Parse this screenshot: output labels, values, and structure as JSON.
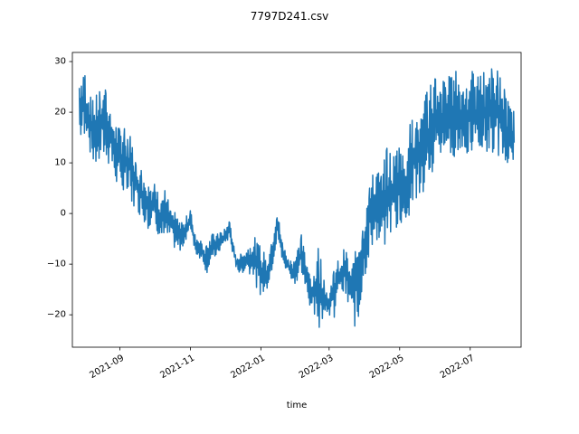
{
  "chart_data": {
    "type": "line",
    "title": "7797D241.csv",
    "xlabel": "time",
    "ylabel": "",
    "x_ticks": [
      "2021-09",
      "2021-11",
      "2022-01",
      "2022-03",
      "2022-05",
      "2022-07"
    ],
    "y_ticks": [
      -20,
      -10,
      0,
      10,
      20,
      30
    ],
    "xlim": [
      "2021-07-22",
      "2022-08-14"
    ],
    "ylim": [
      -26.4,
      31.8
    ],
    "grid": false,
    "legend": "none",
    "series": [
      {
        "color": "#1f77b4",
        "envelope": [
          {
            "date": "2021-07-28",
            "min": 14,
            "max": 28
          },
          {
            "date": "2021-08-01",
            "min": 14,
            "max": 30
          },
          {
            "date": "2021-08-05",
            "min": 13,
            "max": 24
          },
          {
            "date": "2021-08-10",
            "min": 9,
            "max": 22
          },
          {
            "date": "2021-08-15",
            "min": 10,
            "max": 26
          },
          {
            "date": "2021-08-20",
            "min": 11,
            "max": 26
          },
          {
            "date": "2021-08-25",
            "min": 8,
            "max": 20
          },
          {
            "date": "2021-09-01",
            "min": 4,
            "max": 17
          },
          {
            "date": "2021-09-05",
            "min": 3,
            "max": 19
          },
          {
            "date": "2021-09-10",
            "min": 2,
            "max": 16
          },
          {
            "date": "2021-09-15",
            "min": 1,
            "max": 11
          },
          {
            "date": "2021-09-20",
            "min": -1,
            "max": 9
          },
          {
            "date": "2021-09-25",
            "min": -3,
            "max": 7
          },
          {
            "date": "2021-10-01",
            "min": -2,
            "max": 6
          },
          {
            "date": "2021-10-05",
            "min": -5,
            "max": 4
          },
          {
            "date": "2021-10-10",
            "min": -6,
            "max": 5
          },
          {
            "date": "2021-10-15",
            "min": -5,
            "max": 1
          },
          {
            "date": "2021-10-20",
            "min": -8,
            "max": 0
          },
          {
            "date": "2021-10-25",
            "min": -7,
            "max": -2
          },
          {
            "date": "2021-11-01",
            "min": -3,
            "max": 1
          },
          {
            "date": "2021-11-05",
            "min": -8,
            "max": -4
          },
          {
            "date": "2021-11-10",
            "min": -9,
            "max": -5
          },
          {
            "date": "2021-11-15",
            "min": -12,
            "max": -6
          },
          {
            "date": "2021-11-20",
            "min": -9,
            "max": -4
          },
          {
            "date": "2021-11-25",
            "min": -8,
            "max": -4
          },
          {
            "date": "2021-12-01",
            "min": -6,
            "max": -3
          },
          {
            "date": "2021-12-05",
            "min": -5,
            "max": -1
          },
          {
            "date": "2021-12-10",
            "min": -11,
            "max": -8
          },
          {
            "date": "2021-12-15",
            "min": -12,
            "max": -8
          },
          {
            "date": "2021-12-20",
            "min": -11,
            "max": -7
          },
          {
            "date": "2021-12-25",
            "min": -13,
            "max": -4
          },
          {
            "date": "2021-12-31",
            "min": -16,
            "max": -6
          },
          {
            "date": "2022-01-05",
            "min": -17,
            "max": -8
          },
          {
            "date": "2022-01-10",
            "min": -12,
            "max": -6
          },
          {
            "date": "2022-01-15",
            "min": -5,
            "max": 1
          },
          {
            "date": "2022-01-20",
            "min": -10,
            "max": -6
          },
          {
            "date": "2022-01-25",
            "min": -12,
            "max": -9
          },
          {
            "date": "2022-01-30",
            "min": -14,
            "max": -9
          },
          {
            "date": "2022-02-05",
            "min": -12,
            "max": -4
          },
          {
            "date": "2022-02-10",
            "min": -17,
            "max": -10
          },
          {
            "date": "2022-02-15",
            "min": -20,
            "max": -12
          },
          {
            "date": "2022-02-20",
            "min": -24,
            "max": -5
          },
          {
            "date": "2022-02-25",
            "min": -19,
            "max": -14
          },
          {
            "date": "2022-03-01",
            "min": -20,
            "max": -16
          },
          {
            "date": "2022-03-05",
            "min": -21,
            "max": -10
          },
          {
            "date": "2022-03-10",
            "min": -16,
            "max": -9
          },
          {
            "date": "2022-03-15",
            "min": -17,
            "max": -6
          },
          {
            "date": "2022-03-20",
            "min": -20,
            "max": -11
          },
          {
            "date": "2022-03-25",
            "min": -24,
            "max": -4
          },
          {
            "date": "2022-03-30",
            "min": -15,
            "max": 0
          },
          {
            "date": "2022-04-05",
            "min": -8,
            "max": 6
          },
          {
            "date": "2022-04-10",
            "min": -6,
            "max": 10
          },
          {
            "date": "2022-04-15",
            "min": -8,
            "max": 8
          },
          {
            "date": "2022-04-20",
            "min": -5,
            "max": 13
          },
          {
            "date": "2022-04-25",
            "min": -4,
            "max": 12
          },
          {
            "date": "2022-05-01",
            "min": -3,
            "max": 16
          },
          {
            "date": "2022-05-05",
            "min": -2,
            "max": 10
          },
          {
            "date": "2022-05-10",
            "min": 0,
            "max": 18
          },
          {
            "date": "2022-05-15",
            "min": 2,
            "max": 22
          },
          {
            "date": "2022-05-20",
            "min": 3,
            "max": 20
          },
          {
            "date": "2022-05-25",
            "min": 5,
            "max": 25
          },
          {
            "date": "2022-06-01",
            "min": 8,
            "max": 29
          },
          {
            "date": "2022-06-05",
            "min": 10,
            "max": 25
          },
          {
            "date": "2022-06-10",
            "min": 11,
            "max": 28
          },
          {
            "date": "2022-06-15",
            "min": 12,
            "max": 27
          },
          {
            "date": "2022-06-20",
            "min": 10,
            "max": 29
          },
          {
            "date": "2022-06-25",
            "min": 12,
            "max": 26
          },
          {
            "date": "2022-07-01",
            "min": 10,
            "max": 29
          },
          {
            "date": "2022-07-05",
            "min": 11,
            "max": 27
          },
          {
            "date": "2022-07-10",
            "min": 12,
            "max": 28
          },
          {
            "date": "2022-07-15",
            "min": 11,
            "max": 29
          },
          {
            "date": "2022-07-20",
            "min": 12,
            "max": 30
          },
          {
            "date": "2022-07-25",
            "min": 11,
            "max": 29
          },
          {
            "date": "2022-07-31",
            "min": 10,
            "max": 25
          },
          {
            "date": "2022-08-04",
            "min": 7,
            "max": 22
          },
          {
            "date": "2022-08-08",
            "min": 8,
            "max": 20
          }
        ]
      }
    ]
  }
}
